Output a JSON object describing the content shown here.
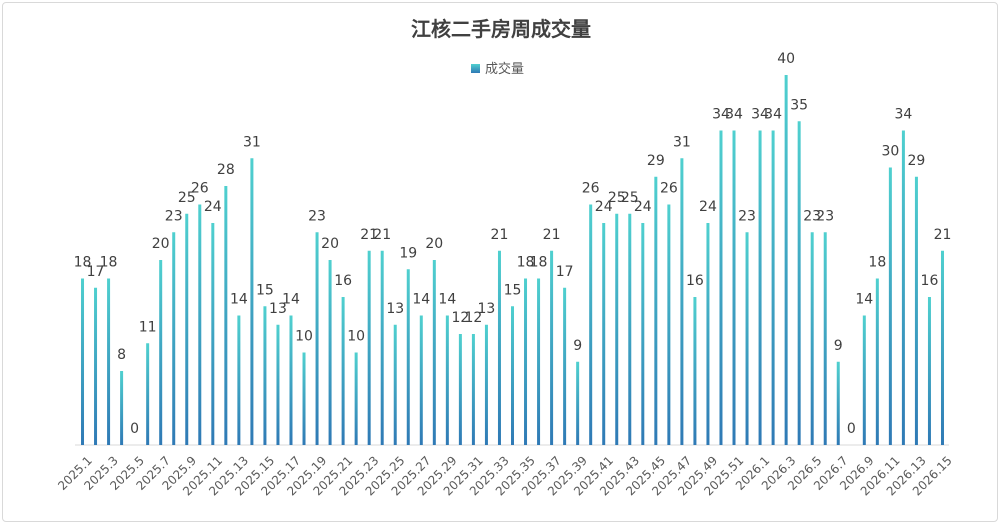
{
  "chart_data": {
    "type": "bar",
    "title": "江核二手房周成交量",
    "legend": [
      "成交量"
    ],
    "legend_position": "top",
    "xlabel": "",
    "ylabel": "",
    "ylim": [
      0,
      40
    ],
    "grid": false,
    "tick_labels": [
      "2025.1",
      "2025.3",
      "2025.5",
      "2025.7",
      "2025.9",
      "2025.11",
      "2025.13",
      "2025.15",
      "2025.17",
      "2025.19",
      "2025.21",
      "2025.23",
      "2025.25",
      "2025.27",
      "2025.29",
      "2025.31",
      "2025.33",
      "2025.35",
      "2025.37",
      "2025.39",
      "2025.41",
      "2025.43",
      "2025.45",
      "2025.47",
      "2025.49",
      "2025.51",
      "2026.1",
      "2026.3",
      "2026.5",
      "2026.7",
      "2026.9",
      "2026.11",
      "2026.13",
      "2026.15"
    ],
    "series": [
      {
        "name": "成交量",
        "values": [
          18,
          17,
          18,
          8,
          0,
          11,
          20,
          23,
          25,
          26,
          24,
          28,
          14,
          31,
          15,
          13,
          14,
          10,
          23,
          20,
          16,
          10,
          21,
          21,
          13,
          19,
          14,
          20,
          14,
          12,
          12,
          13,
          21,
          15,
          18,
          18,
          21,
          17,
          9,
          26,
          24,
          25,
          25,
          24,
          29,
          26,
          31,
          16,
          24,
          34,
          34,
          23,
          34,
          34,
          40,
          35,
          23,
          23,
          9,
          0,
          14,
          18,
          30,
          34,
          29,
          16,
          21
        ],
        "colors": {
          "top": "#4fd0cf",
          "bottom": "#2f79b5"
        }
      }
    ]
  }
}
